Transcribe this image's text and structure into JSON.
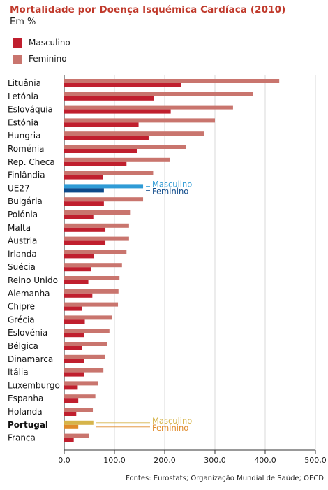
{
  "chart_data": {
    "type": "bar",
    "orientation": "horizontal",
    "title": "Mortalidade por Doença Isquémica Cardíaca (2010)",
    "subtitle": "Em %",
    "categories": [
      "Lituânia",
      "Letónia",
      "Eslováquia",
      "Estónia",
      "Hungria",
      "Roménia",
      "Rep. Checa",
      "Finlândia",
      "UE27",
      "Bulgária",
      "Polónia",
      "Malta",
      "Áustria",
      "Irlanda",
      "Suécia",
      "Reino Unido",
      "Alemanha",
      "Chipre",
      "Grécia",
      "Eslovénia",
      "Bélgica",
      "Dinamarca",
      "Itália",
      "Luxemburgo",
      "Espanha",
      "Holanda",
      "Portugal",
      "França"
    ],
    "series": [
      {
        "name": "Masculino",
        "color": "#c01f2e",
        "values": [
          232,
          178,
          212,
          148,
          168,
          145,
          124,
          77,
          79,
          79,
          58,
          82,
          82,
          59,
          54,
          48,
          56,
          36,
          41,
          40,
          36,
          40,
          40,
          27,
          28,
          24,
          28,
          19
        ]
      },
      {
        "name": "Feminino",
        "color": "#c9756e",
        "values": [
          428,
          376,
          336,
          300,
          279,
          242,
          210,
          177,
          157,
          157,
          131,
          129,
          129,
          124,
          115,
          110,
          108,
          107,
          95,
          90,
          86,
          81,
          78,
          68,
          62,
          57,
          58,
          49
        ]
      }
    ],
    "highlights": {
      "UE27": {
        "Masculino": "#2f9bd6",
        "Feminino": "#0e4a8a",
        "label_color_m": "#2f9bd6",
        "label_color_f": "#0e4a8a"
      },
      "Portugal": {
        "Masculino": "#d6b44a",
        "Feminino": "#e08a2a",
        "label_color_m": "#d6b44a",
        "label_color_f": "#e08a2a"
      }
    },
    "bold_categories": [
      "Portugal"
    ],
    "callouts": {
      "UE27": {
        "m": "Masculino",
        "f": "Feminino"
      },
      "Portugal": {
        "m": "Masculino",
        "f": "Feminino"
      }
    },
    "xlim": [
      0,
      500
    ],
    "xticks": [
      0,
      100,
      200,
      300,
      400,
      500
    ],
    "xtick_labels": [
      "0,0",
      "100,0",
      "200,0",
      "300,0",
      "400,0",
      "500,0"
    ],
    "xlabel": "",
    "ylabel": "",
    "grid": true,
    "legend": "top-left"
  },
  "legend": {
    "masculino": "Masculino",
    "feminino": "Feminino"
  },
  "footer": "Fontes: Eurostats; Organização Mundial de Saúde; OECD"
}
